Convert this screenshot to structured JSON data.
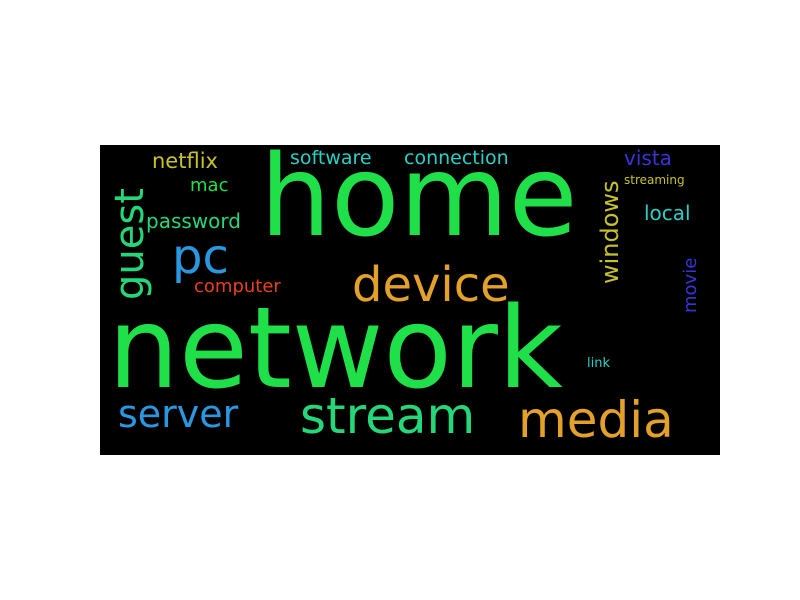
{
  "cloud": {
    "background": "#000000",
    "words": [
      {
        "id": "network",
        "text": "network",
        "color": "#20e04a"
      },
      {
        "id": "home",
        "text": "home",
        "color": "#20e04a"
      },
      {
        "id": "stream",
        "text": "stream",
        "color": "#24d87a"
      },
      {
        "id": "media",
        "text": "media",
        "color": "#e3a12a"
      },
      {
        "id": "device",
        "text": "device",
        "color": "#e3a12a"
      },
      {
        "id": "server",
        "text": "server",
        "color": "#2a98e0"
      },
      {
        "id": "pc",
        "text": "pc",
        "color": "#2a98e0"
      },
      {
        "id": "guest",
        "text": "guest",
        "color": "#24d87a"
      },
      {
        "id": "windows",
        "text": "windows",
        "color": "#c8c22a"
      },
      {
        "id": "netflix",
        "text": "netflix",
        "color": "#c8c22a"
      },
      {
        "id": "software",
        "text": "software",
        "color": "#2ad0c8"
      },
      {
        "id": "connection",
        "text": "connection",
        "color": "#2ad0c8"
      },
      {
        "id": "password",
        "text": "password",
        "color": "#24d87a"
      },
      {
        "id": "mac",
        "text": "mac",
        "color": "#20e04a"
      },
      {
        "id": "computer",
        "text": "computer",
        "color": "#e8401a"
      },
      {
        "id": "vista",
        "text": "vista",
        "color": "#3a34d8"
      },
      {
        "id": "streaming",
        "text": "streaming",
        "color": "#c8c22a"
      },
      {
        "id": "local",
        "text": "local",
        "color": "#2ad0c8"
      },
      {
        "id": "movie",
        "text": "movie",
        "color": "#3a34d8"
      },
      {
        "id": "link",
        "text": "link",
        "color": "#2ad0c8"
      }
    ]
  }
}
